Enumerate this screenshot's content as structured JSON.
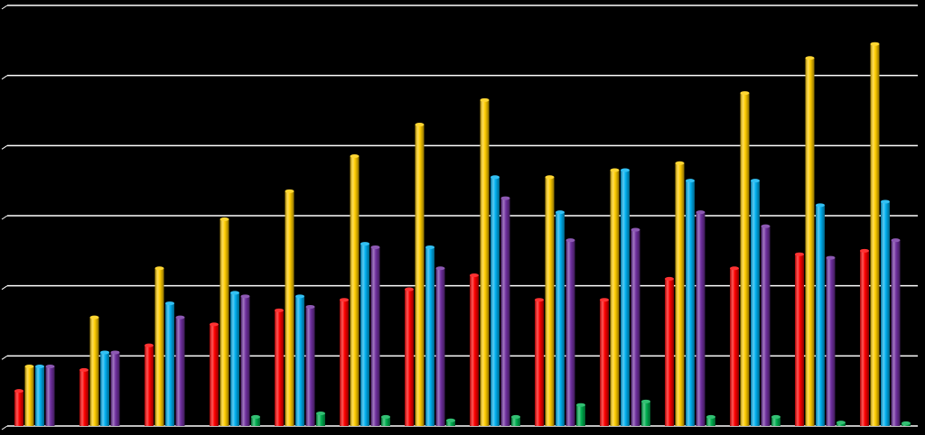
{
  "chart_data": {
    "type": "bar",
    "title": "",
    "xlabel": "",
    "ylabel": "",
    "ylim": [
      0,
      6
    ],
    "yticks": [
      0,
      1,
      2,
      3,
      4,
      5,
      6
    ],
    "grid": true,
    "legend": "none",
    "background": "#000000",
    "gridline_color": "#ffffff",
    "categories": [
      "",
      "",
      "",
      "",
      "",
      "",
      "",
      "",
      "",
      "",
      "",
      "",
      "",
      ""
    ],
    "series": [
      {
        "color": "#ff0000",
        "values": [
          0.5,
          0.8,
          1.15,
          1.45,
          1.65,
          1.8,
          1.95,
          2.15,
          1.8,
          1.8,
          2.1,
          2.25,
          2.45,
          2.5
        ]
      },
      {
        "color": "#ffcc00",
        "values": [
          0.85,
          1.55,
          2.25,
          2.95,
          3.35,
          3.85,
          4.3,
          4.65,
          3.55,
          3.65,
          3.75,
          4.75,
          5.25,
          5.45
        ]
      },
      {
        "color": "#00b0f0",
        "values": [
          0.85,
          1.05,
          1.75,
          1.9,
          1.85,
          2.6,
          2.55,
          3.55,
          3.05,
          3.65,
          3.5,
          3.5,
          3.15,
          3.2
        ]
      },
      {
        "color": "#7030a0",
        "values": [
          0.85,
          1.05,
          1.55,
          1.85,
          1.7,
          2.55,
          2.25,
          3.25,
          2.65,
          2.8,
          3.05,
          2.85,
          2.4,
          2.65
        ]
      },
      {
        "color": "#00b050",
        "values": [
          0,
          0,
          0,
          0.13,
          0.18,
          0.13,
          0.08,
          0.13,
          0.3,
          0.35,
          0.13,
          0.13,
          0.05,
          0.04
        ]
      }
    ]
  }
}
